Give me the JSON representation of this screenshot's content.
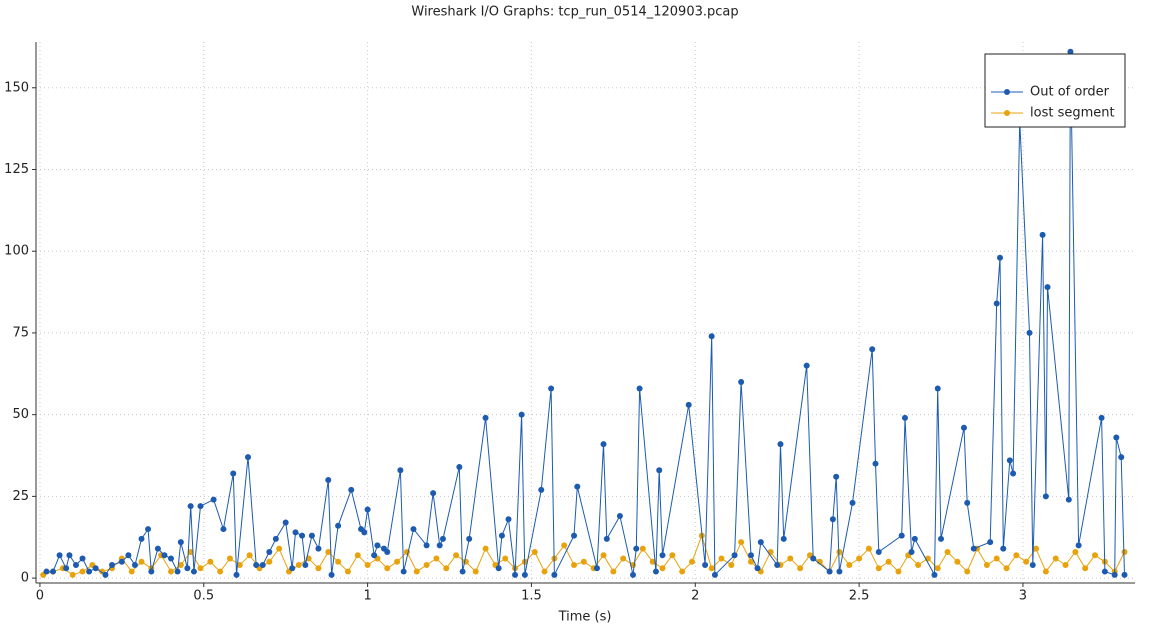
{
  "chart_data": {
    "type": "line",
    "title": "Wireshark I/O Graphs: tcp_run_0514_120903.pcap",
    "xlabel": "Time (s)",
    "xlim": [
      -0.012,
      3.342
    ],
    "ylim": [
      -1.5,
      164
    ],
    "xticks": [
      0,
      0.5,
      1,
      1.5,
      2,
      2.5,
      3
    ],
    "yticks": [
      0,
      25,
      50,
      75,
      100,
      125,
      150
    ],
    "grid": true,
    "legend": "upper right",
    "series": [
      {
        "name": "Out of order",
        "color": "#1c5bb0",
        "x": [
          0.02,
          0.04,
          0.06,
          0.08,
          0.09,
          0.11,
          0.13,
          0.15,
          0.17,
          0.2,
          0.22,
          0.25,
          0.27,
          0.29,
          0.31,
          0.33,
          0.34,
          0.36,
          0.38,
          0.4,
          0.42,
          0.43,
          0.45,
          0.46,
          0.47,
          0.49,
          0.53,
          0.56,
          0.59,
          0.6,
          0.635,
          0.66,
          0.68,
          0.7,
          0.72,
          0.75,
          0.77,
          0.78,
          0.8,
          0.81,
          0.83,
          0.85,
          0.88,
          0.89,
          0.91,
          0.95,
          0.98,
          0.99,
          1.0,
          1.02,
          1.03,
          1.05,
          1.06,
          1.1,
          1.11,
          1.14,
          1.18,
          1.2,
          1.22,
          1.23,
          1.28,
          1.29,
          1.31,
          1.36,
          1.4,
          1.41,
          1.43,
          1.45,
          1.47,
          1.48,
          1.53,
          1.56,
          1.57,
          1.63,
          1.64,
          1.7,
          1.72,
          1.73,
          1.77,
          1.81,
          1.82,
          1.83,
          1.88,
          1.89,
          1.9,
          1.98,
          2.03,
          2.05,
          2.06,
          2.12,
          2.14,
          2.17,
          2.19,
          2.2,
          2.25,
          2.26,
          2.27,
          2.34,
          2.36,
          2.41,
          2.42,
          2.43,
          2.44,
          2.48,
          2.54,
          2.55,
          2.56,
          2.63,
          2.64,
          2.66,
          2.67,
          2.73,
          2.74,
          2.75,
          2.82,
          2.83,
          2.85,
          2.9,
          2.92,
          2.93,
          2.94,
          2.96,
          2.97,
          2.99,
          3.02,
          3.03,
          3.06,
          3.07,
          3.075,
          3.14,
          3.145,
          3.17,
          3.24,
          3.25,
          3.28,
          3.285,
          3.3,
          3.31
        ],
        "values": [
          2,
          2,
          7,
          3,
          7,
          4,
          6,
          2,
          3,
          1,
          4,
          5,
          7,
          4,
          12,
          15,
          2,
          9,
          7,
          6,
          2,
          11,
          3,
          22,
          2,
          22,
          24,
          15,
          32,
          1,
          37,
          4,
          4,
          8,
          12,
          17,
          3,
          14,
          13,
          4,
          13,
          9,
          30,
          1,
          16,
          27,
          15,
          14,
          21,
          7,
          10,
          9,
          8,
          33,
          2,
          15,
          10,
          26,
          10,
          12,
          34,
          2,
          12,
          49,
          3,
          13,
          18,
          1,
          50,
          1,
          27,
          58,
          1,
          13,
          28,
          3,
          41,
          12,
          19,
          1,
          9,
          58,
          2,
          33,
          7,
          53,
          4,
          74,
          1,
          7,
          60,
          7,
          3,
          11,
          4,
          41,
          12,
          65,
          6,
          2,
          18,
          31,
          2,
          23,
          70,
          35,
          8,
          13,
          49,
          8,
          12,
          1,
          58,
          12,
          46,
          23,
          9,
          11,
          84,
          98,
          9,
          36,
          32,
          140,
          75,
          4,
          105,
          25,
          89,
          24,
          161,
          10,
          49,
          2,
          1,
          43,
          37,
          1
        ]
      },
      {
        "name": "lost segment",
        "color": "#e8a30c",
        "x": [
          0.01,
          0.04,
          0.07,
          0.1,
          0.13,
          0.16,
          0.19,
          0.22,
          0.25,
          0.28,
          0.31,
          0.34,
          0.37,
          0.4,
          0.43,
          0.46,
          0.49,
          0.52,
          0.55,
          0.58,
          0.61,
          0.64,
          0.67,
          0.7,
          0.73,
          0.76,
          0.79,
          0.82,
          0.85,
          0.88,
          0.91,
          0.94,
          0.97,
          1.0,
          1.03,
          1.06,
          1.09,
          1.12,
          1.15,
          1.18,
          1.21,
          1.24,
          1.27,
          1.3,
          1.33,
          1.36,
          1.39,
          1.42,
          1.45,
          1.48,
          1.51,
          1.54,
          1.57,
          1.6,
          1.63,
          1.66,
          1.69,
          1.72,
          1.75,
          1.78,
          1.81,
          1.84,
          1.87,
          1.9,
          1.93,
          1.96,
          1.99,
          2.02,
          2.05,
          2.08,
          2.11,
          2.14,
          2.17,
          2.2,
          2.23,
          2.26,
          2.29,
          2.32,
          2.35,
          2.38,
          2.41,
          2.44,
          2.47,
          2.5,
          2.53,
          2.56,
          2.59,
          2.62,
          2.65,
          2.68,
          2.71,
          2.74,
          2.77,
          2.8,
          2.83,
          2.86,
          2.89,
          2.92,
          2.95,
          2.98,
          3.01,
          3.04,
          3.07,
          3.1,
          3.13,
          3.16,
          3.19,
          3.22,
          3.25,
          3.28,
          3.31
        ],
        "values": [
          1,
          2,
          3,
          1,
          2,
          4,
          2,
          3,
          6,
          2,
          5,
          3,
          7,
          2,
          4,
          8,
          3,
          5,
          2,
          6,
          4,
          7,
          3,
          5,
          9,
          2,
          4,
          6,
          3,
          8,
          5,
          2,
          7,
          4,
          6,
          3,
          5,
          8,
          2,
          4,
          6,
          3,
          7,
          5,
          2,
          9,
          4,
          6,
          3,
          5,
          8,
          2,
          6,
          10,
          4,
          5,
          3,
          7,
          2,
          6,
          4,
          9,
          5,
          3,
          7,
          2,
          5,
          13,
          3,
          6,
          4,
          11,
          5,
          2,
          8,
          4,
          6,
          3,
          7,
          5,
          2,
          8,
          4,
          6,
          9,
          3,
          5,
          2,
          7,
          4,
          6,
          3,
          8,
          5,
          2,
          9,
          4,
          6,
          3,
          7,
          5,
          9,
          2,
          6,
          4,
          8,
          3,
          7,
          5,
          2,
          8
        ]
      }
    ]
  }
}
